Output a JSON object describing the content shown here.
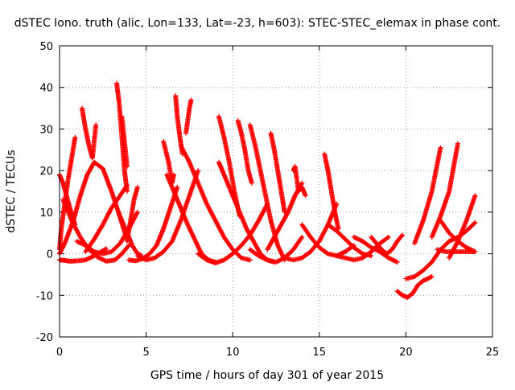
{
  "chart_data": {
    "type": "scatter",
    "title": "dSTEC Iono. truth (alic, Lon=133, Lat=-23, h=603): STEC-STEC_elemax in phase cont.",
    "xlabel": "GPS time / hours of day 301 of year 2015",
    "ylabel": "dSTEC  / TECUs",
    "xlim": [
      0,
      25
    ],
    "ylim": [
      -20,
      50
    ],
    "x_ticks": [
      0,
      5,
      10,
      15,
      20,
      25
    ],
    "y_ticks": [
      -20,
      -10,
      0,
      10,
      20,
      30,
      40,
      50
    ],
    "x_tick_labels": [
      "0",
      "5",
      "10",
      "15",
      "20",
      "25"
    ],
    "y_tick_labels": [
      "-20",
      "-10",
      "0",
      "10",
      "20",
      "30",
      "40",
      "50"
    ],
    "grid": true,
    "legend": "none",
    "marker": "plus",
    "color": "#ff0000",
    "series": [
      {
        "x": [
          0.0,
          0.3,
          0.6,
          1.0,
          1.5,
          2.0,
          2.4,
          2.7
        ],
        "y": [
          -1.5,
          -1.6,
          -1.8,
          -1.7,
          -1.5,
          -0.5,
          0.5,
          1.2
        ]
      },
      {
        "x": [
          0.0,
          0.3,
          0.8,
          1.2,
          1.6,
          2.0,
          2.5,
          3.0,
          3.4,
          3.7,
          3.85,
          3.9
        ],
        "y": [
          0.0,
          2.5,
          8.0,
          14.0,
          19.0,
          22.0,
          20.5,
          15.0,
          10.0,
          6.0,
          4.0,
          3.5
        ]
      },
      {
        "x": [
          0.0,
          0.2,
          0.4,
          0.6,
          0.9
        ],
        "y": [
          19.0,
          17.0,
          14.0,
          11.0,
          7.0
        ]
      },
      {
        "x": [
          0.0,
          0.1,
          0.3,
          0.5,
          0.7,
          0.9
        ],
        "y": [
          1.0,
          6.0,
          12.0,
          18.0,
          23.0,
          28.0
        ]
      },
      {
        "x": [
          0.2,
          0.7,
          1.2,
          1.7,
          2.2,
          2.7,
          3.2,
          3.6,
          4.0
        ],
        "y": [
          13.0,
          8.0,
          4.0,
          1.0,
          -0.8,
          -1.8,
          -1.5,
          0.0,
          2.0
        ]
      },
      {
        "x": [
          1.3,
          1.5,
          1.7,
          1.9,
          2.1
        ],
        "y": [
          35.0,
          30.0,
          26.0,
          23.0,
          31.0
        ]
      },
      {
        "x": [
          1.0,
          1.5,
          2.0,
          2.5,
          3.0,
          3.5,
          4.0,
          4.5
        ],
        "y": [
          3.0,
          2.0,
          0.5,
          0.0,
          0.5,
          2.5,
          6.0,
          10.0
        ]
      },
      {
        "x": [
          1.5,
          2.0,
          2.5,
          3.0,
          3.5,
          3.9
        ],
        "y": [
          0.5,
          3.5,
          7.0,
          11.0,
          14.0,
          16.5
        ]
      },
      {
        "x": [
          3.3,
          3.45,
          3.6,
          3.75,
          3.9
        ],
        "y": [
          41.0,
          36.0,
          28.0,
          20.0,
          15.0
        ]
      },
      {
        "x": [
          3.6,
          3.75,
          3.9
        ],
        "y": [
          33.0,
          27.0,
          21.0
        ]
      },
      {
        "x": [
          3.4,
          3.8,
          4.2,
          4.5,
          4.7
        ],
        "y": [
          10.0,
          6.0,
          2.0,
          0.0,
          -0.3
        ]
      },
      {
        "x": [
          4.0,
          4.4,
          4.8,
          5.2,
          5.6,
          6.0,
          6.4,
          6.8
        ],
        "y": [
          -1.5,
          -1.7,
          -1.2,
          0.0,
          2.0,
          6.0,
          11.0,
          16.0
        ]
      },
      {
        "x": [
          3.9,
          4.1,
          4.3,
          4.5
        ],
        "y": [
          3.0,
          8.0,
          13.0,
          16.0
        ]
      },
      {
        "x": [
          4.5,
          5.0,
          5.5,
          6.0,
          6.5,
          7.0,
          7.5,
          8.0
        ],
        "y": [
          -0.5,
          -1.5,
          -1.0,
          0.5,
          3.0,
          8.0,
          14.0,
          20.0
        ]
      },
      {
        "x": [
          6.0,
          6.3,
          6.5,
          6.6
        ],
        "y": [
          27.0,
          22.0,
          17.0,
          19.0
        ]
      },
      {
        "x": [
          6.2,
          6.6,
          7.0,
          7.4,
          7.8,
          8.2,
          8.6,
          9.0
        ],
        "y": [
          19.0,
          15.0,
          11.0,
          7.0,
          3.5,
          0.0,
          -1.5,
          -2.0
        ]
      },
      {
        "x": [
          6.7,
          6.8,
          6.95,
          7.1
        ],
        "y": [
          38.0,
          33.0,
          28.0,
          24.0
        ]
      },
      {
        "x": [
          7.3,
          7.4,
          7.5,
          7.6
        ],
        "y": [
          29.0,
          32.0,
          35.0,
          37.0
        ]
      },
      {
        "x": [
          7.0,
          7.5,
          8.0,
          8.5,
          9.0,
          9.5,
          10.0,
          10.5,
          11.0
        ],
        "y": [
          26.0,
          22.0,
          17.0,
          12.0,
          8.0,
          4.0,
          1.0,
          -1.0,
          -1.5
        ]
      },
      {
        "x": [
          8.0,
          8.5,
          9.0,
          9.5,
          10.0,
          10.5,
          11.0,
          11.5,
          12.0
        ],
        "y": [
          0.0,
          -1.5,
          -2.2,
          -1.5,
          0.0,
          2.0,
          4.5,
          8.0,
          12.0
        ]
      },
      {
        "x": [
          9.2,
          9.5,
          9.8,
          10.1,
          10.4
        ],
        "y": [
          33.0,
          28.0,
          22.0,
          15.0,
          9.0
        ]
      },
      {
        "x": [
          9.2,
          9.6,
          10.0,
          10.4,
          10.8,
          11.2,
          11.6,
          12.0,
          12.4
        ],
        "y": [
          22.0,
          18.0,
          14.0,
          10.0,
          6.0,
          3.0,
          0.0,
          -1.5,
          -2.0
        ]
      },
      {
        "x": [
          10.3,
          10.5,
          10.7,
          10.9,
          11.1
        ],
        "y": [
          32.0,
          29.0,
          25.0,
          20.0,
          17.0
        ]
      },
      {
        "x": [
          11.0,
          11.3,
          11.6,
          11.9,
          12.2,
          12.6,
          13.0
        ],
        "y": [
          31.0,
          26.0,
          20.0,
          14.0,
          8.0,
          2.0,
          -1.5
        ]
      },
      {
        "x": [
          11.0,
          11.5,
          12.0,
          12.5,
          13.0,
          13.5,
          14.0
        ],
        "y": [
          1.0,
          -0.5,
          -1.5,
          -2.0,
          -1.0,
          1.0,
          4.0
        ]
      },
      {
        "x": [
          12.2,
          12.4,
          12.6,
          12.8,
          13.0
        ],
        "y": [
          29.0,
          25.0,
          20.0,
          15.0,
          10.0
        ]
      },
      {
        "x": [
          12.0,
          12.4,
          12.8,
          13.2,
          13.6,
          14.0
        ],
        "y": [
          1.0,
          4.0,
          7.0,
          10.0,
          14.0,
          17.0
        ]
      },
      {
        "x": [
          13.5,
          13.6,
          13.7,
          13.8,
          14.0,
          14.2
        ],
        "y": [
          20.0,
          21.0,
          18.0,
          15.0,
          16.0,
          14.0
        ]
      },
      {
        "x": [
          13.0,
          13.5,
          14.0,
          14.5,
          15.0,
          15.5,
          16.0
        ],
        "y": [
          -1.0,
          -1.5,
          -1.0,
          0.5,
          3.0,
          7.0,
          12.0
        ]
      },
      {
        "x": [
          15.3,
          15.5,
          15.7,
          15.9,
          16.1
        ],
        "y": [
          24.0,
          20.0,
          15.0,
          10.0,
          6.0
        ]
      },
      {
        "x": [
          14.0,
          14.5,
          15.0,
          15.5,
          16.0,
          16.5,
          17.0
        ],
        "y": [
          7.0,
          4.0,
          1.5,
          0.0,
          -0.5,
          0.5,
          2.0
        ]
      },
      {
        "x": [
          15.5,
          16.0,
          16.5,
          17.0,
          17.5,
          18.0
        ],
        "y": [
          7.0,
          5.5,
          3.5,
          1.5,
          0.0,
          -0.5
        ]
      },
      {
        "x": [
          16.0,
          16.5,
          17.0,
          17.5,
          18.0,
          18.5,
          19.0
        ],
        "y": [
          -0.5,
          -1.0,
          -1.5,
          -1.0,
          0.5,
          2.5,
          4.0
        ]
      },
      {
        "x": [
          17.0,
          17.5,
          18.0,
          18.5,
          19.0,
          19.5
        ],
        "y": [
          4.0,
          3.0,
          1.5,
          0.5,
          -1.0,
          -2.0
        ]
      },
      {
        "x": [
          18.0,
          18.3,
          18.6,
          18.9,
          19.2,
          19.5,
          19.8
        ],
        "y": [
          4.0,
          2.5,
          1.0,
          0.0,
          1.0,
          3.0,
          4.5
        ]
      },
      {
        "x": [
          19.5,
          19.8,
          20.1,
          20.4,
          20.7,
          21.0,
          21.5
        ],
        "y": [
          -9.0,
          -10.0,
          -10.5,
          -9.5,
          -7.5,
          -6.5,
          -5.5
        ]
      },
      {
        "x": [
          20.0,
          20.5,
          21.0,
          21.5,
          22.0,
          22.5,
          23.0,
          23.5,
          24.0
        ],
        "y": [
          -6.0,
          -5.5,
          -4.0,
          -2.0,
          1.0,
          3.0,
          4.0,
          5.5,
          7.5
        ]
      },
      {
        "x": [
          20.5,
          21.0,
          21.5,
          22.0
        ],
        "y": [
          2.5,
          8.0,
          15.0,
          25.5
        ]
      },
      {
        "x": [
          21.5,
          22.0,
          22.5,
          23.0
        ],
        "y": [
          4.0,
          9.0,
          15.0,
          26.5
        ]
      },
      {
        "x": [
          22.0,
          22.5,
          23.0,
          23.5,
          24.0
        ],
        "y": [
          8.0,
          5.0,
          3.0,
          1.5,
          0.5
        ]
      },
      {
        "x": [
          21.8,
          22.3,
          22.8,
          23.3,
          23.8,
          24.0
        ],
        "y": [
          1.0,
          0.5,
          0.5,
          0.5,
          0.5,
          0.5
        ]
      },
      {
        "x": [
          22.5,
          23.0,
          23.5,
          24.0
        ],
        "y": [
          -1.0,
          3.0,
          8.0,
          14.0
        ]
      }
    ]
  }
}
